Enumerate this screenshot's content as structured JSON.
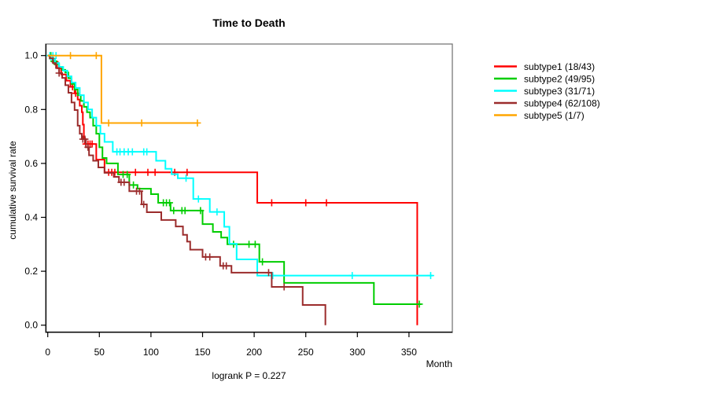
{
  "title": "Time to Death",
  "ylabel": "cumulative survival rate",
  "xlabel": "Month",
  "footnote": "logrank P = 0.227",
  "chart_data": {
    "type": "line",
    "variant": "kaplan_meier_step",
    "title": "Time to Death",
    "xlabel": "Month",
    "ylabel": "cumulative survival rate",
    "annotation": "logrank P = 0.227",
    "xlim": [
      0,
      392
    ],
    "ylim": [
      0,
      1
    ],
    "grid": false,
    "legend_position": "right-outside",
    "x_ticks": [
      0,
      50,
      100,
      150,
      200,
      250,
      300,
      350
    ],
    "x_tick_labels": [
      "0",
      "50",
      "100",
      "150",
      "200",
      "250",
      "300",
      "350"
    ],
    "y_ticks": [
      0,
      0.2,
      0.4,
      0.6,
      0.8,
      1
    ],
    "y_tick_labels": [
      "0.0",
      "0.2",
      "0.4",
      "0.6",
      "0.8",
      "1.0"
    ],
    "series": [
      {
        "id": "subtype1",
        "label": "subtype1 (18/43)",
        "deaths": 18,
        "n": 43,
        "color": "#FF0000",
        "points": [
          [
            0,
            1.0
          ],
          [
            5,
            0.977
          ],
          [
            9,
            0.953
          ],
          [
            13,
            0.93
          ],
          [
            18,
            0.907
          ],
          [
            22,
            0.884
          ],
          [
            26,
            0.86
          ],
          [
            29,
            0.837
          ],
          [
            31,
            0.814
          ],
          [
            33,
            0.79
          ],
          [
            34,
            0.744
          ],
          [
            35,
            0.696
          ],
          [
            36,
            0.672
          ],
          [
            47,
            0.614
          ],
          [
            55,
            0.567
          ],
          [
            203,
            0.454
          ],
          [
            358,
            0.0
          ]
        ],
        "end_month": null,
        "censors": [
          [
            7,
            0.977
          ],
          [
            24,
            0.884
          ],
          [
            27,
            0.86
          ],
          [
            37,
            0.672
          ],
          [
            39,
            0.672
          ],
          [
            41,
            0.672
          ],
          [
            43,
            0.672
          ],
          [
            59,
            0.567
          ],
          [
            62,
            0.567
          ],
          [
            65,
            0.567
          ],
          [
            85,
            0.567
          ],
          [
            97,
            0.567
          ],
          [
            104,
            0.567
          ],
          [
            123,
            0.567
          ],
          [
            135,
            0.567
          ],
          [
            217,
            0.454
          ],
          [
            250,
            0.454
          ],
          [
            270,
            0.454
          ]
        ]
      },
      {
        "id": "subtype2",
        "label": "subtype2 (49/95)",
        "deaths": 49,
        "n": 95,
        "color": "#00CD00",
        "points": [
          [
            0,
            1.0
          ],
          [
            2,
            0.989
          ],
          [
            5,
            0.979
          ],
          [
            8,
            0.968
          ],
          [
            11,
            0.958
          ],
          [
            14,
            0.947
          ],
          [
            17,
            0.937
          ],
          [
            20,
            0.916
          ],
          [
            23,
            0.895
          ],
          [
            26,
            0.874
          ],
          [
            29,
            0.853
          ],
          [
            32,
            0.832
          ],
          [
            35,
            0.81
          ],
          [
            38,
            0.79
          ],
          [
            41,
            0.77
          ],
          [
            44,
            0.74
          ],
          [
            47,
            0.71
          ],
          [
            50,
            0.66
          ],
          [
            53,
            0.62
          ],
          [
            57,
            0.6
          ],
          [
            68,
            0.559
          ],
          [
            79,
            0.52
          ],
          [
            87,
            0.506
          ],
          [
            100,
            0.486
          ],
          [
            107,
            0.454
          ],
          [
            119,
            0.425
          ],
          [
            150,
            0.375
          ],
          [
            160,
            0.346
          ],
          [
            168,
            0.325
          ],
          [
            174,
            0.3
          ],
          [
            205,
            0.235
          ],
          [
            229,
            0.157
          ],
          [
            316,
            0.078
          ]
        ],
        "end_month": 362,
        "censors": [
          [
            3,
            1.0
          ],
          [
            6,
            0.979
          ],
          [
            73,
            0.559
          ],
          [
            77,
            0.559
          ],
          [
            83,
            0.52
          ],
          [
            112,
            0.454
          ],
          [
            115,
            0.454
          ],
          [
            118,
            0.454
          ],
          [
            122,
            0.425
          ],
          [
            130,
            0.425
          ],
          [
            133,
            0.425
          ],
          [
            148,
            0.425
          ],
          [
            180,
            0.3
          ],
          [
            195,
            0.3
          ],
          [
            201,
            0.3
          ],
          [
            208,
            0.235
          ],
          [
            360,
            0.078
          ]
        ]
      },
      {
        "id": "subtype3",
        "label": "subtype3 (31/71)",
        "deaths": 31,
        "n": 71,
        "color": "#00FFFF",
        "points": [
          [
            0,
            1.0
          ],
          [
            3,
            0.986
          ],
          [
            7,
            0.972
          ],
          [
            11,
            0.958
          ],
          [
            15,
            0.944
          ],
          [
            19,
            0.923
          ],
          [
            23,
            0.9
          ],
          [
            27,
            0.88
          ],
          [
            31,
            0.853
          ],
          [
            35,
            0.826
          ],
          [
            39,
            0.8
          ],
          [
            43,
            0.77
          ],
          [
            47,
            0.74
          ],
          [
            51,
            0.71
          ],
          [
            55,
            0.68
          ],
          [
            63,
            0.643
          ],
          [
            105,
            0.61
          ],
          [
            114,
            0.58
          ],
          [
            120,
            0.56
          ],
          [
            126,
            0.545
          ],
          [
            141,
            0.468
          ],
          [
            157,
            0.42
          ],
          [
            171,
            0.365
          ],
          [
            176,
            0.302
          ],
          [
            183,
            0.244
          ],
          [
            203,
            0.184
          ]
        ],
        "end_month": 373,
        "censors": [
          [
            2,
            1.0
          ],
          [
            5,
            1.0
          ],
          [
            8,
            1.0
          ],
          [
            67,
            0.643
          ],
          [
            70,
            0.643
          ],
          [
            74,
            0.643
          ],
          [
            78,
            0.643
          ],
          [
            82,
            0.643
          ],
          [
            93,
            0.643
          ],
          [
            96,
            0.643
          ],
          [
            134,
            0.545
          ],
          [
            146,
            0.468
          ],
          [
            164,
            0.42
          ],
          [
            218,
            0.184
          ],
          [
            295,
            0.184
          ],
          [
            371,
            0.184
          ]
        ]
      },
      {
        "id": "subtype4",
        "label": "subtype4 (62/108)",
        "deaths": 62,
        "n": 108,
        "color": "#9B2C2C",
        "points": [
          [
            0,
            1.0
          ],
          [
            2,
            0.99
          ],
          [
            5,
            0.972
          ],
          [
            8,
            0.954
          ],
          [
            11,
            0.935
          ],
          [
            14,
            0.917
          ],
          [
            17,
            0.89
          ],
          [
            20,
            0.862
          ],
          [
            23,
            0.826
          ],
          [
            26,
            0.798
          ],
          [
            29,
            0.74
          ],
          [
            31,
            0.71
          ],
          [
            33,
            0.69
          ],
          [
            37,
            0.66
          ],
          [
            40,
            0.63
          ],
          [
            44,
            0.61
          ],
          [
            49,
            0.585
          ],
          [
            55,
            0.565
          ],
          [
            64,
            0.55
          ],
          [
            69,
            0.53
          ],
          [
            79,
            0.497
          ],
          [
            91,
            0.448
          ],
          [
            96,
            0.419
          ],
          [
            110,
            0.39
          ],
          [
            124,
            0.366
          ],
          [
            131,
            0.335
          ],
          [
            135,
            0.31
          ],
          [
            138,
            0.28
          ],
          [
            150,
            0.253
          ],
          [
            167,
            0.22
          ],
          [
            178,
            0.195
          ],
          [
            217,
            0.142
          ],
          [
            247,
            0.075
          ],
          [
            269,
            0.0
          ]
        ],
        "end_month": null,
        "censors": [
          [
            11,
            0.935
          ],
          [
            34,
            0.69
          ],
          [
            36,
            0.69
          ],
          [
            39,
            0.66
          ],
          [
            71,
            0.53
          ],
          [
            74,
            0.53
          ],
          [
            86,
            0.497
          ],
          [
            89,
            0.497
          ],
          [
            93,
            0.448
          ],
          [
            153,
            0.253
          ],
          [
            157,
            0.253
          ],
          [
            170,
            0.22
          ],
          [
            173,
            0.22
          ],
          [
            214,
            0.195
          ],
          [
            229,
            0.142
          ]
        ]
      },
      {
        "id": "subtype5",
        "label": "subtype5 (1/7)",
        "deaths": 1,
        "n": 7,
        "color": "#FFA500",
        "points": [
          [
            0,
            1.0
          ],
          [
            52,
            0.75
          ]
        ],
        "end_month": 146,
        "censors": [
          [
            22,
            1.0
          ],
          [
            47,
            1.0
          ],
          [
            59,
            0.75
          ],
          [
            91,
            0.75
          ],
          [
            145,
            0.75
          ]
        ]
      }
    ]
  }
}
